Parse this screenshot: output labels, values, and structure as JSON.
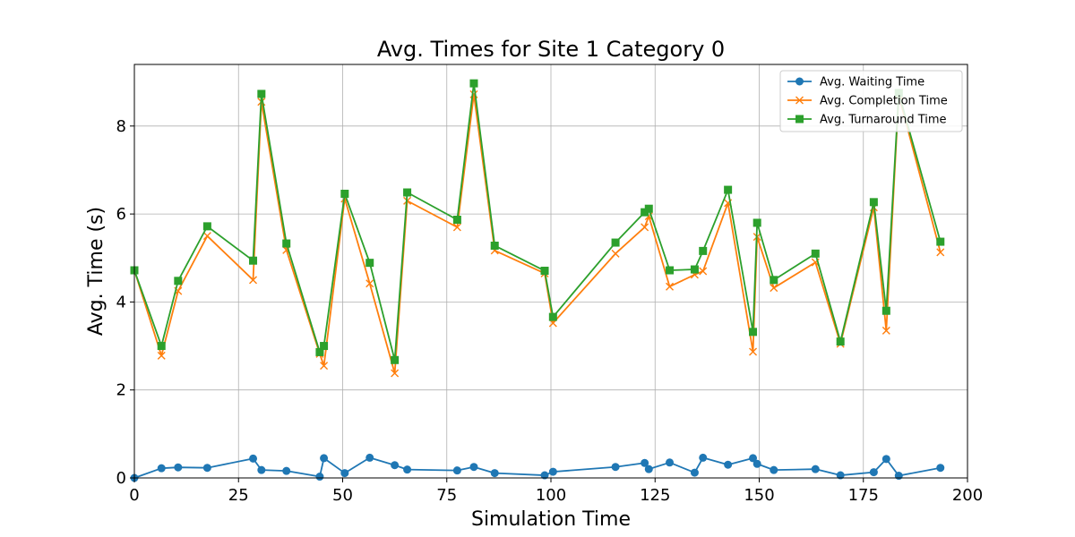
{
  "chart_data": {
    "type": "line",
    "title": "Avg. Times for Site 1 Category 0",
    "xlabel": "Simulation Time",
    "ylabel": "Avg. Time (s)",
    "xlim": [
      0,
      200
    ],
    "ylim": [
      0,
      9.4
    ],
    "xticks": [
      0,
      25,
      50,
      75,
      100,
      125,
      150,
      175,
      200
    ],
    "yticks": [
      0,
      2,
      4,
      6,
      8
    ],
    "grid": true,
    "legend_position": "top-right",
    "x": [
      0,
      6.5,
      10.5,
      17.5,
      28.5,
      30.5,
      36.5,
      44.5,
      45.5,
      50.5,
      56.5,
      62.5,
      65.5,
      77.5,
      81.5,
      86.5,
      98.5,
      100.5,
      115.5,
      122.5,
      123.5,
      128.5,
      134.5,
      136.5,
      142.5,
      148.5,
      149.5,
      153.5,
      163.5,
      169.5,
      177.5,
      180.5,
      183.5,
      193.5
    ],
    "series": [
      {
        "name": "Avg. Waiting Time",
        "color": "#1f77b4",
        "marker": "circle",
        "values": [
          0.0,
          0.22,
          0.24,
          0.23,
          0.44,
          0.18,
          0.16,
          0.03,
          0.45,
          0.11,
          0.46,
          0.29,
          0.19,
          0.17,
          0.25,
          0.11,
          0.06,
          0.14,
          0.25,
          0.34,
          0.2,
          0.35,
          0.12,
          0.46,
          0.3,
          0.45,
          0.32,
          0.18,
          0.2,
          0.06,
          0.13,
          0.43,
          0.05,
          0.23
        ]
      },
      {
        "name": "Avg. Completion Time",
        "color": "#ff7f0e",
        "marker": "x",
        "values": [
          4.72,
          2.78,
          4.25,
          5.5,
          4.5,
          8.55,
          5.18,
          2.82,
          2.55,
          6.35,
          4.42,
          2.38,
          6.3,
          5.7,
          8.72,
          5.17,
          4.65,
          3.52,
          5.1,
          5.7,
          5.95,
          4.35,
          4.62,
          4.7,
          6.25,
          2.87,
          5.48,
          4.32,
          4.9,
          3.05,
          6.15,
          3.35,
          8.7,
          5.13
        ]
      },
      {
        "name": "Avg. Turnaround Time",
        "color": "#2ca02c",
        "marker": "square",
        "values": [
          4.72,
          3.0,
          4.48,
          5.72,
          4.94,
          8.73,
          5.33,
          2.86,
          3.0,
          6.46,
          4.89,
          2.68,
          6.49,
          5.87,
          8.97,
          5.28,
          4.71,
          3.66,
          5.35,
          6.04,
          6.12,
          4.72,
          4.74,
          5.16,
          6.55,
          3.32,
          5.8,
          4.5,
          5.1,
          3.1,
          6.27,
          3.8,
          8.75,
          5.37
        ]
      }
    ]
  }
}
